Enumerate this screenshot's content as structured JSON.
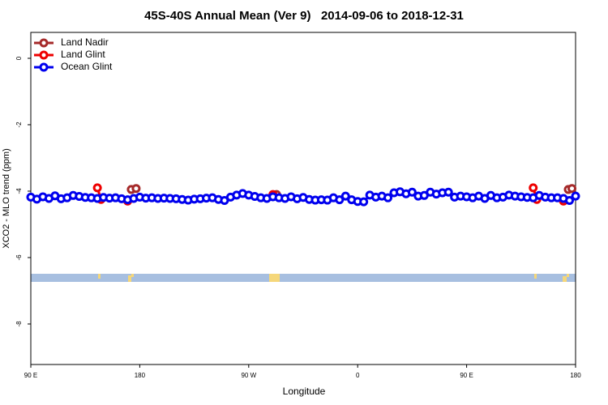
{
  "chart_data": {
    "type": "line",
    "title": "45S-40S Annual Mean (Ver 9)   2014-09-06 to 2018-12-31",
    "x_label": "Longitude",
    "y_label": "XCO2 - MLO trend (ppm)",
    "xlim": [
      90,
      540
    ],
    "ylim": [
      -9.22,
      0.78
    ],
    "xticks": [
      {
        "value": 90,
        "label": "90 E"
      },
      {
        "value": 180,
        "label": "180"
      },
      {
        "value": 270,
        "label": "90 W"
      },
      {
        "value": 360,
        "label": "0"
      },
      {
        "value": 450,
        "label": "90 E"
      },
      {
        "value": 540,
        "label": "180"
      }
    ],
    "yticks": [
      0,
      -2,
      -4,
      -6,
      -8
    ],
    "legend": "top-left",
    "series": [
      {
        "name": "Land Nadir",
        "color": "#a52a2a",
        "x": [
          173,
          177,
          293,
          534,
          537
        ],
        "values": [
          -3.95,
          -3.92,
          -4.1,
          -3.95,
          -3.92
        ]
      },
      {
        "name": "Land Glint",
        "color": "#ee0000",
        "x": [
          145,
          148,
          170,
          290,
          505,
          508,
          530
        ],
        "values": [
          -3.9,
          -4.25,
          -4.3,
          -4.1,
          -3.9,
          -4.25,
          -4.3
        ]
      },
      {
        "name": "Ocean Glint",
        "color": "#0000ee",
        "x": [
          90,
          95,
          100,
          105,
          110,
          115,
          120,
          125,
          130,
          135,
          140,
          145,
          150,
          155,
          160,
          165,
          170,
          175,
          180,
          185,
          190,
          195,
          200,
          205,
          210,
          215,
          220,
          225,
          230,
          235,
          240,
          245,
          250,
          255,
          260,
          265,
          270,
          275,
          280,
          285,
          290,
          295,
          300,
          305,
          310,
          315,
          320,
          325,
          330,
          335,
          340,
          345,
          350,
          355,
          360,
          365,
          370,
          375,
          380,
          385,
          390,
          395,
          400,
          405,
          410,
          415,
          420,
          425,
          430,
          435,
          440,
          445,
          450,
          455,
          460,
          465,
          470,
          475,
          480,
          485,
          490,
          495,
          500,
          505,
          510,
          515,
          520,
          525,
          530,
          535,
          540
        ],
        "values": [
          -4.18,
          -4.24,
          -4.17,
          -4.22,
          -4.14,
          -4.23,
          -4.2,
          -4.13,
          -4.16,
          -4.19,
          -4.2,
          -4.22,
          -4.19,
          -4.21,
          -4.2,
          -4.23,
          -4.26,
          -4.22,
          -4.18,
          -4.21,
          -4.2,
          -4.22,
          -4.21,
          -4.22,
          -4.23,
          -4.25,
          -4.27,
          -4.24,
          -4.23,
          -4.21,
          -4.2,
          -4.25,
          -4.28,
          -4.18,
          -4.12,
          -4.07,
          -4.12,
          -4.16,
          -4.2,
          -4.22,
          -4.17,
          -4.2,
          -4.22,
          -4.17,
          -4.23,
          -4.19,
          -4.25,
          -4.27,
          -4.26,
          -4.27,
          -4.2,
          -4.26,
          -4.15,
          -4.26,
          -4.31,
          -4.32,
          -4.12,
          -4.18,
          -4.15,
          -4.2,
          -4.05,
          -4.02,
          -4.08,
          -4.03,
          -4.15,
          -4.13,
          -4.03,
          -4.09,
          -4.05,
          -4.03,
          -4.18,
          -4.15,
          -4.17,
          -4.2,
          -4.15,
          -4.22,
          -4.13,
          -4.2,
          -4.18,
          -4.12,
          -4.15,
          -4.17,
          -4.19,
          -4.2,
          -4.13,
          -4.18,
          -4.2,
          -4.2,
          -4.22,
          -4.28,
          -4.15
        ]
      }
    ]
  }
}
